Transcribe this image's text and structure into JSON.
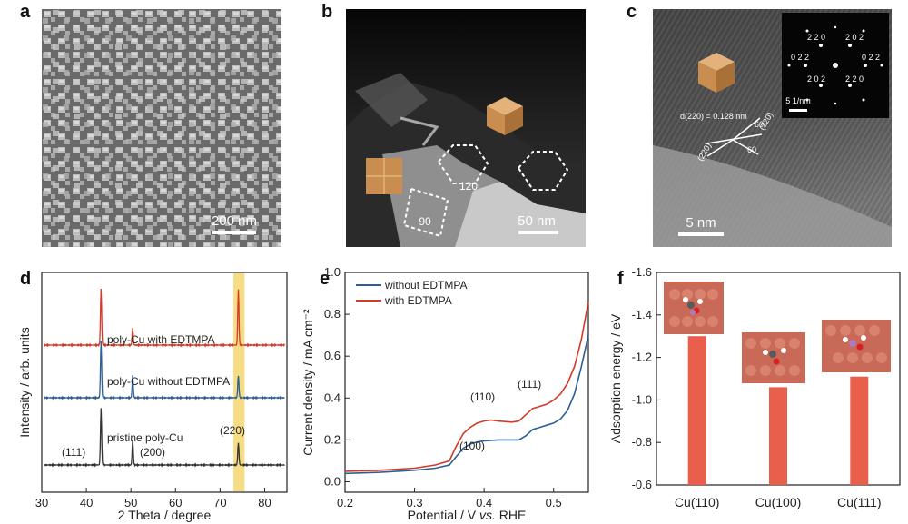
{
  "panels": {
    "a": {
      "label": "a",
      "scale_bar": "200 nm"
    },
    "b": {
      "label": "b",
      "scale_bar": "50 nm",
      "angle_1": "120",
      "angle_2": "90"
    },
    "c": {
      "label": "c",
      "scale_bar": "5 nm",
      "d_spacing": "d(220) = 0.128 nm",
      "angle_1": "60",
      "angle_2": "60",
      "plane_1": "(220)",
      "plane_2": "(220)",
      "inset_scale": "5 1/nm",
      "saed_spots": [
        "2 2 0",
        "2 0 2",
        "0 2 2",
        "0 2 2",
        "2 0 2",
        "2 2 0"
      ]
    },
    "d": {
      "label": "d"
    },
    "e": {
      "label": "e"
    },
    "f": {
      "label": "f"
    }
  },
  "chart_data": [
    {
      "id": "d",
      "type": "line",
      "xlabel": "2 Theta / degree",
      "ylabel": "Intensity / arb. units",
      "xlim": [
        30,
        85
      ],
      "xticks": [
        30,
        40,
        50,
        60,
        70,
        80
      ],
      "highlight_band": [
        73,
        75.5
      ],
      "highlight_color": "#f5d76e",
      "series": [
        {
          "name": "poly-Cu with EDTMPA",
          "color": "#d23a2a",
          "peaks": [
            [
              43.3,
              1.0
            ],
            [
              50.4,
              0.3
            ],
            [
              74.1,
              1.0
            ]
          ]
        },
        {
          "name": "poly-Cu without EDTMPA",
          "color": "#2d5f95",
          "peaks": [
            [
              43.3,
              1.0
            ],
            [
              50.4,
              0.4
            ],
            [
              74.1,
              0.4
            ]
          ]
        },
        {
          "name": "pristine poly-Cu",
          "color": "#333333",
          "peaks": [
            [
              43.3,
              1.0
            ],
            [
              50.4,
              0.45
            ],
            [
              74.1,
              0.4
            ]
          ]
        }
      ],
      "annotations": [
        "(111)",
        "(200)",
        "(220)"
      ]
    },
    {
      "id": "e",
      "type": "line",
      "xlabel_pre": "Potential / V ",
      "xlabel_em": "vs.",
      "xlabel_post": " RHE",
      "ylabel": "Current density / mA cm⁻²",
      "xlim": [
        0.2,
        0.55
      ],
      "ylim": [
        -0.05,
        1.0
      ],
      "xticks": [
        0.2,
        0.3,
        0.4,
        0.5
      ],
      "yticks": [
        0.0,
        0.2,
        0.4,
        0.6,
        0.8,
        1.0
      ],
      "series": [
        {
          "name": "without EDTMPA",
          "color": "#2d5f95",
          "x": [
            0.2,
            0.25,
            0.3,
            0.33,
            0.35,
            0.36,
            0.37,
            0.38,
            0.39,
            0.4,
            0.42,
            0.44,
            0.45,
            0.46,
            0.47,
            0.48,
            0.49,
            0.5,
            0.51,
            0.52,
            0.53,
            0.54,
            0.55
          ],
          "y": [
            0.04,
            0.045,
            0.055,
            0.065,
            0.08,
            0.12,
            0.16,
            0.18,
            0.19,
            0.195,
            0.2,
            0.2,
            0.2,
            0.22,
            0.25,
            0.26,
            0.27,
            0.28,
            0.3,
            0.34,
            0.42,
            0.55,
            0.7
          ]
        },
        {
          "name": "with EDTMPA",
          "color": "#d23a2a",
          "x": [
            0.2,
            0.25,
            0.3,
            0.33,
            0.35,
            0.36,
            0.37,
            0.38,
            0.39,
            0.4,
            0.41,
            0.42,
            0.44,
            0.45,
            0.46,
            0.47,
            0.48,
            0.49,
            0.5,
            0.51,
            0.52,
            0.53,
            0.54,
            0.55
          ],
          "y": [
            0.05,
            0.055,
            0.065,
            0.08,
            0.1,
            0.17,
            0.23,
            0.26,
            0.28,
            0.29,
            0.295,
            0.29,
            0.285,
            0.29,
            0.32,
            0.35,
            0.36,
            0.37,
            0.39,
            0.42,
            0.47,
            0.55,
            0.68,
            0.86
          ]
        }
      ],
      "annotations": [
        "(110)",
        "(111)",
        "(100)"
      ]
    },
    {
      "id": "f",
      "type": "bar",
      "ylabel": "Adsorption energy / eV",
      "ylim": [
        -0.6,
        -1.6
      ],
      "yticks": [
        -0.6,
        -0.8,
        -1.0,
        -1.2,
        -1.4,
        -1.6
      ],
      "categories": [
        "Cu(110)",
        "Cu(100)",
        "Cu(111)"
      ],
      "values": [
        -1.3,
        -1.06,
        -1.11
      ],
      "bar_color": "#e8604c"
    }
  ]
}
